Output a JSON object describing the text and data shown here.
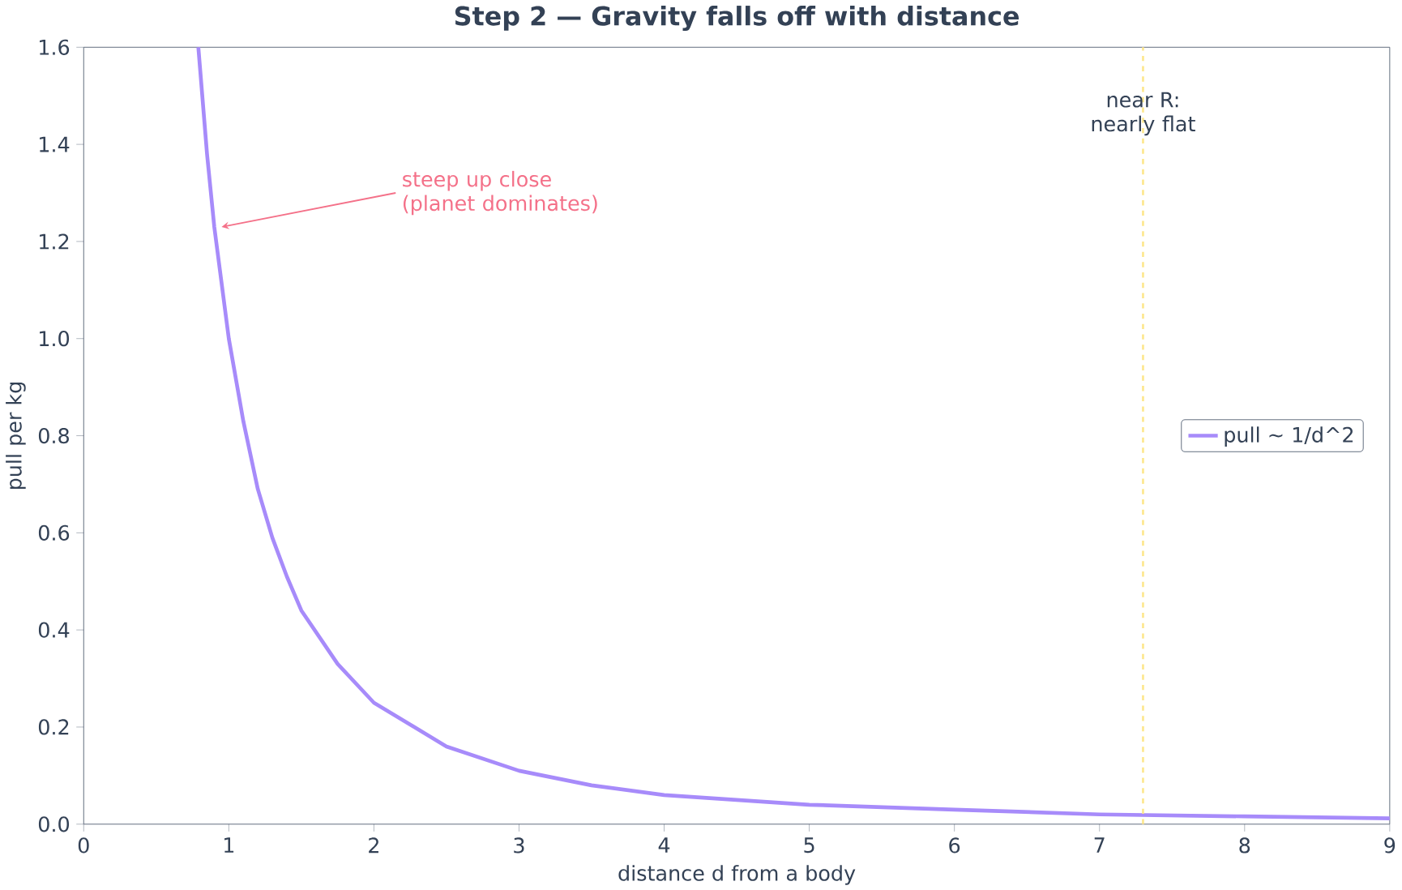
{
  "chart_data": {
    "type": "line",
    "title": "Step 2 — Gravity falls off with distance",
    "xlabel": "distance d from a body",
    "ylabel": "pull per kg",
    "x": [
      0.79,
      0.85,
      0.9,
      1,
      1.1,
      1.2,
      1.3,
      1.4,
      1.5,
      1.75,
      2,
      2.5,
      3,
      3.5,
      4,
      5,
      6,
      7,
      8,
      9
    ],
    "series": [
      {
        "name": "pull ~ 1/d^2",
        "color": "#a78bfa",
        "values": [
          1.6,
          1.38,
          1.23,
          1.0,
          0.83,
          0.69,
          0.59,
          0.51,
          0.44,
          0.33,
          0.25,
          0.16,
          0.11,
          0.08,
          0.06,
          0.04,
          0.03,
          0.02,
          0.016,
          0.012
        ]
      }
    ],
    "xlim": [
      0,
      9
    ],
    "ylim": [
      0,
      1.6
    ],
    "xticks": [
      0,
      1,
      2,
      3,
      4,
      5,
      6,
      7,
      8,
      9
    ],
    "yticks": [
      {
        "value": 0,
        "label": "0.0"
      },
      {
        "value": 0.2,
        "label": "0.2"
      },
      {
        "value": 0.4,
        "label": "0.4"
      },
      {
        "value": 0.6,
        "label": "0.6"
      },
      {
        "value": 0.8,
        "label": "0.8"
      },
      {
        "value": 1.0,
        "label": "1.0"
      },
      {
        "value": 1.2,
        "label": "1.2"
      },
      {
        "value": 1.4,
        "label": "1.4"
      },
      {
        "value": 1.6,
        "label": "1.6"
      }
    ],
    "ref_lines": [
      {
        "axis": "x",
        "value": 7.3,
        "label": "near R: nearly flat",
        "color": "#fde68a",
        "line_style": "dashed"
      }
    ],
    "annotations": [
      {
        "text": "steep up close (planet dominates)",
        "x": 0.95,
        "y": 1.23
      }
    ],
    "legend": "right",
    "grid": false,
    "marker": "none",
    "line_style": "solid"
  }
}
